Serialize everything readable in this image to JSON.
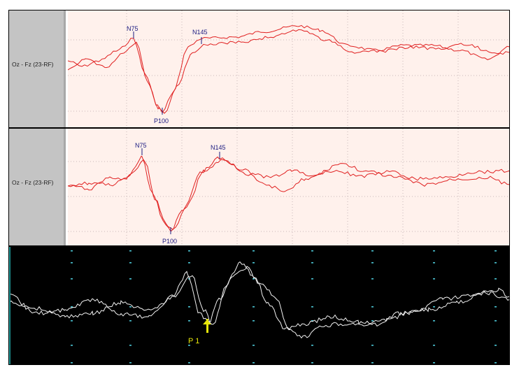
{
  "panels": [
    {
      "channel": "Oz - Fz (23-RF)",
      "markers": {
        "n75": "N75",
        "p100": "P100",
        "n145": "N145"
      }
    },
    {
      "channel": "Oz - Fz (23-RF)",
      "markers": {
        "n75": "N75",
        "p100": "P100",
        "n145": "N145"
      }
    },
    {
      "markers": {
        "p1": "P 1"
      }
    }
  ],
  "colors": {
    "trace": "#e02020",
    "plot_bg": "#fff1ec",
    "label_bg": "#c4c4c4",
    "dark_bg": "#000000",
    "dark_trace": "#f2f2f2",
    "marker": "#1a1a80",
    "highlight": "#e6e60a",
    "tick": "#4fd0e0"
  }
}
